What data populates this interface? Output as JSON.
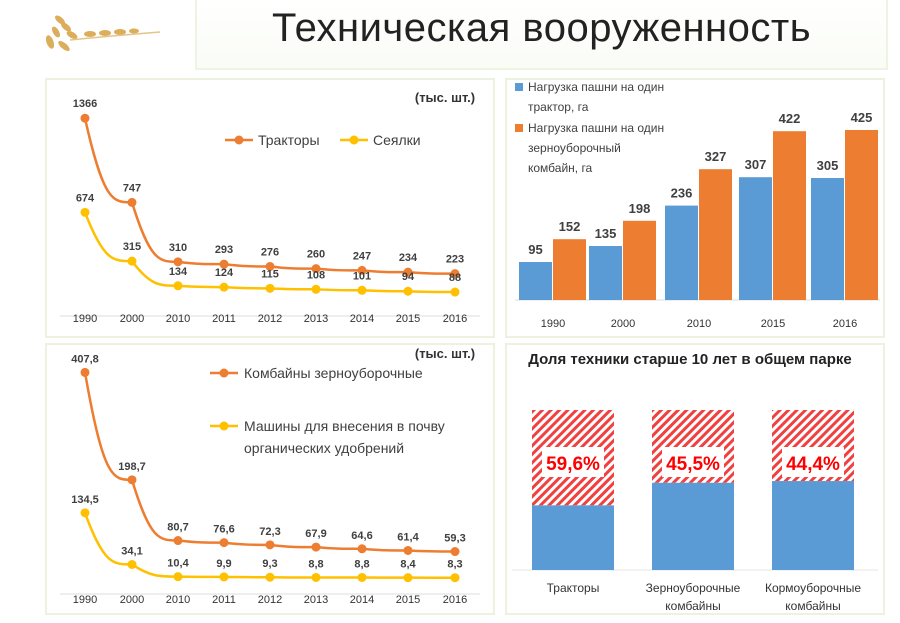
{
  "page_title": "Техническая вооруженность",
  "colors": {
    "orange": "#ED7D31",
    "yellow": "#FFC000",
    "blue": "#5B9BD5",
    "red": "#FF0000"
  },
  "chart_data": [
    {
      "type": "line",
      "unit_label": "(тыс. шт.)",
      "categories": [
        "1990",
        "2000",
        "2010",
        "2011",
        "2012",
        "2013",
        "2014",
        "2015",
        "2016"
      ],
      "series": [
        {
          "name": "Тракторы",
          "labels": [
            "1366",
            "747",
            "310",
            "293",
            "276",
            "260",
            "247",
            "234",
            "223"
          ],
          "values": [
            1366,
            747,
            310,
            293,
            276,
            260,
            247,
            234,
            223
          ]
        },
        {
          "name": "Сеялки",
          "labels": [
            "674",
            "315",
            "134",
            "124",
            "115",
            "108",
            "101",
            "94",
            "88"
          ],
          "values": [
            674,
            315,
            134,
            124,
            115,
            108,
            101,
            94,
            88
          ]
        }
      ]
    },
    {
      "type": "bar",
      "categories": [
        "1990",
        "2000",
        "2010",
        "2015",
        "2016"
      ],
      "series": [
        {
          "name": "Нагрузка пашни на один трактор, га",
          "legend_lines": [
            "Нагрузка пашни на один",
            "трактор, га"
          ],
          "values": [
            95,
            135,
            236,
            307,
            305
          ]
        },
        {
          "name": "Нагрузка пашни на один зерноуборочный комбайн, га",
          "legend_lines": [
            "Нагрузка пашни на один",
            "зерноуборочный",
            "комбайн, га"
          ],
          "values": [
            152,
            198,
            327,
            422,
            425
          ]
        }
      ]
    },
    {
      "type": "line",
      "unit_label": "(тыс. шт.)",
      "categories": [
        "1990",
        "2000",
        "2010",
        "2011",
        "2012",
        "2013",
        "2014",
        "2015",
        "2016"
      ],
      "series": [
        {
          "name": "Комбайны зерноуборочные",
          "legend_lines": [
            "Комбайны зерноуборочные"
          ],
          "labels": [
            "407,8",
            "198,7",
            "80,7",
            "76,6",
            "72,3",
            "67,9",
            "64,6",
            "61,4",
            "59,3"
          ],
          "values": [
            407.8,
            198.7,
            80.7,
            76.6,
            72.3,
            67.9,
            64.6,
            61.4,
            59.3
          ]
        },
        {
          "name": "Машины для внесения в почву органических удобрений",
          "legend_lines": [
            "Машины для внесения в почву",
            "органических удобрений"
          ],
          "labels": [
            "134,5",
            "34,1",
            "10,4",
            "9,9",
            "9,3",
            "8,8",
            "8,8",
            "8,4",
            "8,3"
          ],
          "values": [
            134.5,
            34.1,
            10.4,
            9.9,
            9.3,
            8.8,
            8.8,
            8.4,
            8.3
          ]
        }
      ]
    },
    {
      "type": "bar",
      "stacked": true,
      "title": "Доля техники старше 10 лет в общем парке",
      "categories": [
        [
          "Тракторы"
        ],
        [
          "Зерноуборочные",
          "комбайны"
        ],
        [
          "Кормоуборочные",
          "комбайны"
        ]
      ],
      "values": [
        59.6,
        45.5,
        44.4
      ],
      "labels": [
        "59,6%",
        "45,5%",
        "44,4%"
      ]
    }
  ]
}
